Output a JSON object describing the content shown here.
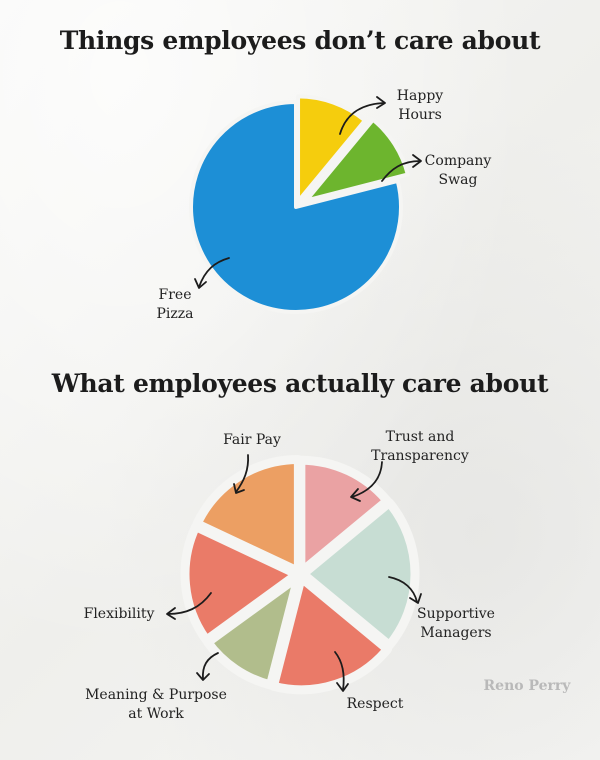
{
  "chart_data": [
    {
      "type": "pie",
      "title": "Things employees don’t care about",
      "categories": [
        "Happy Hours",
        "Company Swag",
        "Free Pizza"
      ],
      "values": [
        11,
        10,
        79
      ],
      "colors": [
        "#f5cd0d",
        "#6db52e",
        "#1d8fd6"
      ],
      "labels": [
        [
          "Happy",
          "Hours"
        ],
        [
          "Company",
          "Swag"
        ],
        [
          "Free",
          "Pizza"
        ]
      ]
    },
    {
      "type": "pie",
      "title": "What employees actually care about",
      "categories": [
        "Trust and Transparency",
        "Supportive Managers",
        "Respect",
        "Meaning & Purpose at Work",
        "Flexibility",
        "Fair Pay"
      ],
      "values": [
        14,
        22,
        18,
        11,
        17,
        18
      ],
      "colors": [
        "#eaa2a3",
        "#c7ddd3",
        "#ea7a68",
        "#b1bd8c",
        "#ea7b68",
        "#ec9f63"
      ],
      "labels": [
        [
          "Trust and",
          "Transparency"
        ],
        [
          "Supportive",
          "Managers"
        ],
        [
          "Respect"
        ],
        [
          "Meaning & Purpose",
          "at Work"
        ],
        [
          "Flexibility"
        ],
        [
          "Fair Pay"
        ]
      ]
    }
  ],
  "watermark": "Reno Perry"
}
